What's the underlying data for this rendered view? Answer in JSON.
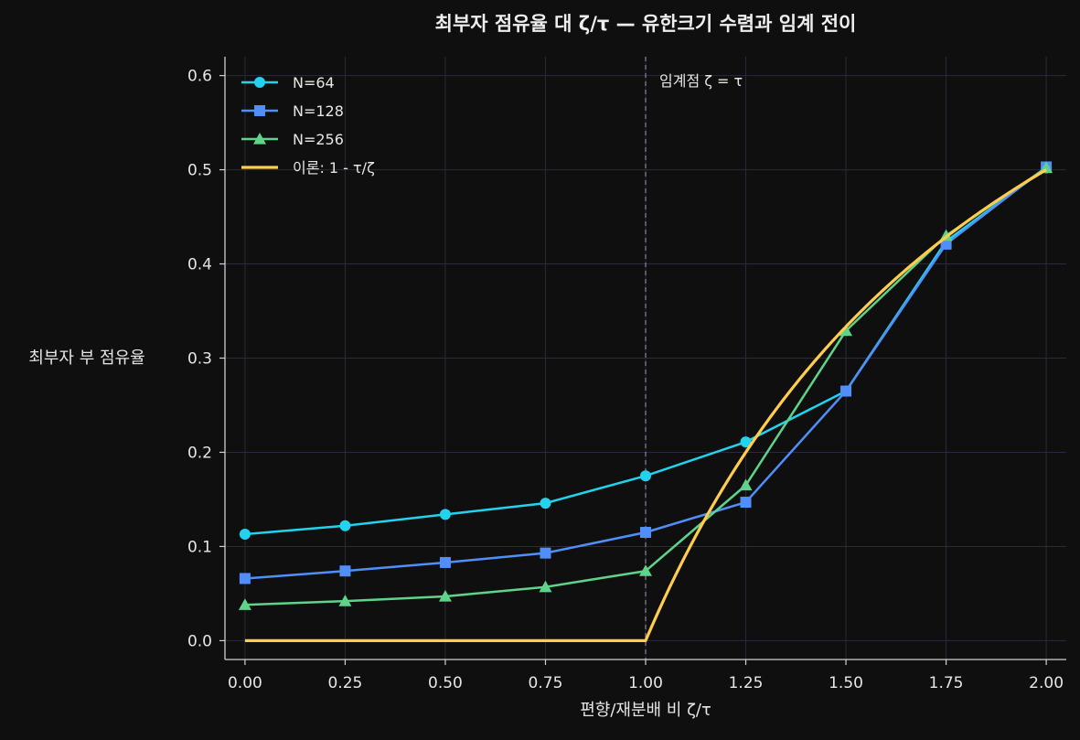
{
  "chart_data": {
    "type": "line",
    "title": "최부자 점유율 대 ζ/τ — 유한크기 수렴과 임계 전이",
    "xlabel": "편향/재분배 비 ζ/τ",
    "ylabel": "최부자 부 점유율",
    "xlim": [
      -0.05,
      2.05
    ],
    "ylim": [
      -0.02,
      0.62
    ],
    "xticks": [
      0.0,
      0.25,
      0.5,
      0.75,
      1.0,
      1.25,
      1.5,
      1.75,
      2.0
    ],
    "xtick_labels": [
      "0.00",
      "0.25",
      "0.50",
      "0.75",
      "1.00",
      "1.25",
      "1.50",
      "1.75",
      "2.00"
    ],
    "yticks": [
      0.0,
      0.1,
      0.2,
      0.3,
      0.4,
      0.5,
      0.6
    ],
    "ytick_labels": [
      "0.0",
      "0.1",
      "0.2",
      "0.3",
      "0.4",
      "0.5",
      "0.6"
    ],
    "grid": true,
    "legend_position": "top-left",
    "x": [
      0.0,
      0.25,
      0.5,
      0.75,
      1.0,
      1.25,
      1.5,
      1.75,
      2.0
    ],
    "series": [
      {
        "name": "N=64",
        "marker": "circle",
        "color": "#22d3ee",
        "values": [
          0.113,
          0.122,
          0.134,
          0.146,
          0.175,
          0.211,
          0.265,
          0.424,
          0.502
        ]
      },
      {
        "name": "N=128",
        "marker": "square",
        "color": "#4f8ff7",
        "values": [
          0.066,
          0.074,
          0.083,
          0.093,
          0.115,
          0.147,
          0.265,
          0.421,
          0.503
        ]
      },
      {
        "name": "N=256",
        "marker": "triangle",
        "color": "#5fd38a",
        "values": [
          0.038,
          0.042,
          0.047,
          0.057,
          0.074,
          0.165,
          0.329,
          0.43,
          0.502
        ]
      }
    ],
    "theory": {
      "name": "이론: 1 - τ/ζ",
      "color": "#ffcc4d"
    },
    "critical_line": {
      "x": 1.0,
      "label": "임계점 ζ = τ"
    }
  }
}
